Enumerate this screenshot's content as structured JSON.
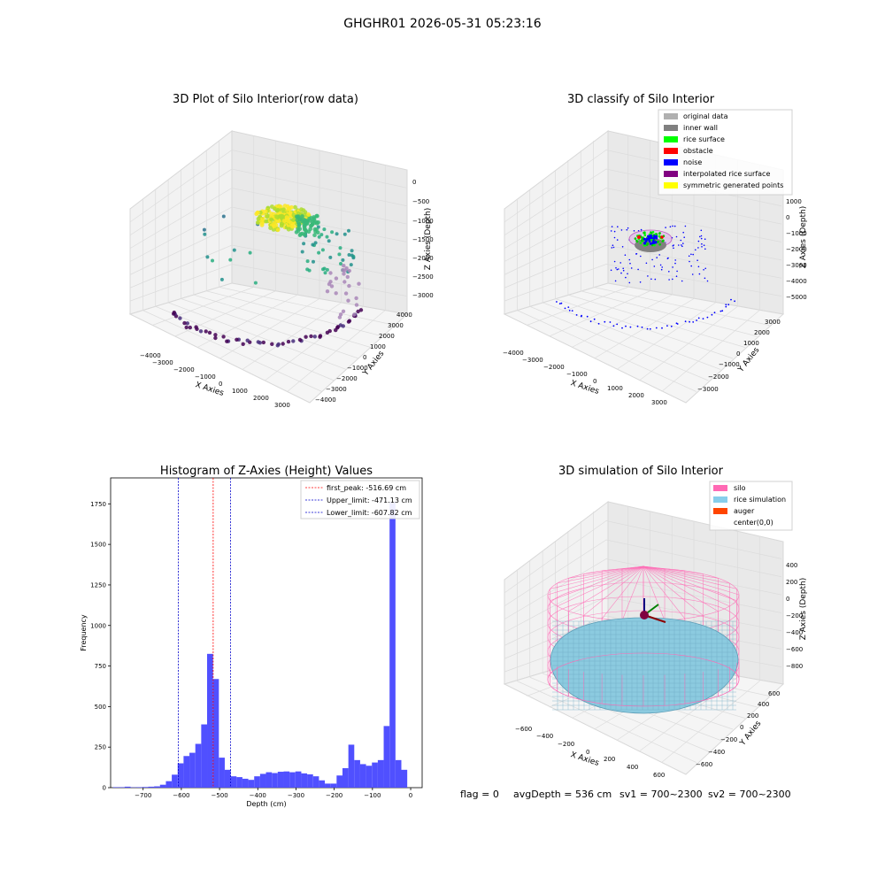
{
  "figure": {
    "suptitle": "GHGHR01 2026-05-31 05:23:16",
    "status": {
      "flag": "flag = 0",
      "avg_depth": "avgDepth = 536 cm",
      "sv1": "sv1 = 700~2300",
      "sv2": "sv2 = 700~2300"
    }
  },
  "panels": {
    "raw": {
      "title": "3D Plot of Silo Interior(row data)",
      "xlabel": "X Axies",
      "ylabel": "Y Axies",
      "zlabel": "Z Axies (Depth)",
      "xticks": [
        "−4000",
        "−3000",
        "−2000",
        "−1000",
        "0",
        "1000",
        "2000",
        "3000"
      ],
      "yticks": [
        "4000",
        "3000",
        "2000",
        "1000",
        "0",
        "−1000",
        "−2000",
        "−3000",
        "−4000"
      ],
      "zticks": [
        "0",
        "−500",
        "−1000",
        "−1500",
        "−2000",
        "−2500",
        "−3000"
      ]
    },
    "classify": {
      "title": "3D classify of Silo Interior",
      "xlabel": "X Axies",
      "ylabel": "Y Axies",
      "zlabel": "Z Axies (Depth)",
      "xticks": [
        "−4000",
        "−3000",
        "−2000",
        "−1000",
        "0",
        "1000",
        "2000",
        "3000"
      ],
      "yticks": [
        "3000",
        "2000",
        "1000",
        "0",
        "−1000",
        "−2000",
        "−3000"
      ],
      "zticks": [
        "1000",
        "0",
        "−1000",
        "−2000",
        "−3000",
        "−4000",
        "−5000"
      ],
      "legend": [
        {
          "label": "original data",
          "color": "#b0b0b0"
        },
        {
          "label": "inner wall",
          "color": "#808080"
        },
        {
          "label": "rice surface",
          "color": "#00ff00"
        },
        {
          "label": "obstacle",
          "color": "#ff0000"
        },
        {
          "label": "noise",
          "color": "#0000ff"
        },
        {
          "label": "interpolated rice surface",
          "color": "#800080"
        },
        {
          "label": "symmetric generated points",
          "color": "#ffff00"
        }
      ]
    },
    "simulation": {
      "title": "3D simulation of Silo Interior",
      "xlabel": "X Axies",
      "ylabel": "Y Axies",
      "zlabel": "Z Axies (Depth)",
      "xticks": [
        "−600",
        "−400",
        "−200",
        "0",
        "200",
        "400",
        "600"
      ],
      "yticks": [
        "600",
        "400",
        "200",
        "0",
        "−200",
        "−400",
        "−600"
      ],
      "zticks": [
        "400",
        "200",
        "0",
        "−200",
        "−400",
        "−600",
        "−800"
      ],
      "legend": [
        {
          "label": "silo",
          "color": "#ff69b4"
        },
        {
          "label": "rice simulation",
          "color": "#87ceeb"
        },
        {
          "label": "auger",
          "color": "#ff4500"
        },
        {
          "label": "center(0,0)",
          "color": ""
        }
      ]
    }
  },
  "chart_data": [
    {
      "type": "bar",
      "title": "Histogram of Z-Axies (Height) Values",
      "xlabel": "Depth (cm)",
      "ylabel": "Frequency",
      "xlim": [
        -785,
        30
      ],
      "ylim": [
        0,
        1910
      ],
      "xticks": [
        -700,
        -600,
        -500,
        -400,
        -300,
        -200,
        -100,
        0
      ],
      "yticks": [
        0,
        250,
        500,
        750,
        1000,
        1250,
        1500,
        1750
      ],
      "bar_color": "#5050ff",
      "bin_width": 15.4,
      "bin_starts": [
        -779,
        -763.6,
        -748.2,
        -732.8,
        -717.4,
        -702,
        -686.6,
        -671.2,
        -655.8,
        -640.4,
        -625,
        -609.6,
        -594.2,
        -578.8,
        -563.4,
        -548,
        -532.6,
        -517.2,
        -501.8,
        -486.4,
        -471,
        -455.6,
        -440.2,
        -424.8,
        -409.4,
        -394,
        -378.6,
        -363.2,
        -347.8,
        -332.4,
        -317,
        -301.6,
        -286.2,
        -270.8,
        -255.4,
        -240,
        -224.6,
        -209.2,
        -193.8,
        -178.4,
        -163,
        -147.6,
        -132.2,
        -116.8,
        -101.4,
        -86,
        -70.6,
        -55.2,
        -39.8,
        -24.4,
        -9
      ],
      "values": [
        3,
        3,
        6,
        2,
        3,
        4,
        6,
        8,
        18,
        40,
        80,
        150,
        195,
        215,
        270,
        390,
        825,
        670,
        185,
        110,
        70,
        65,
        55,
        48,
        70,
        85,
        95,
        90,
        98,
        100,
        95,
        100,
        88,
        82,
        70,
        45,
        25,
        25,
        75,
        120,
        265,
        170,
        145,
        135,
        155,
        170,
        380,
        1760,
        170,
        110,
        0
      ],
      "lines": [
        {
          "label": "first_peak: -516.69 cm",
          "x": -516.69,
          "color": "#ff0000"
        },
        {
          "label": "Upper_limit: -471.13 cm",
          "x": -471.13,
          "color": "#0000cc"
        },
        {
          "label": "Lower_limit: -607.82 cm",
          "x": -607.82,
          "color": "#0000cc"
        }
      ],
      "legend_position": "top-right"
    }
  ]
}
